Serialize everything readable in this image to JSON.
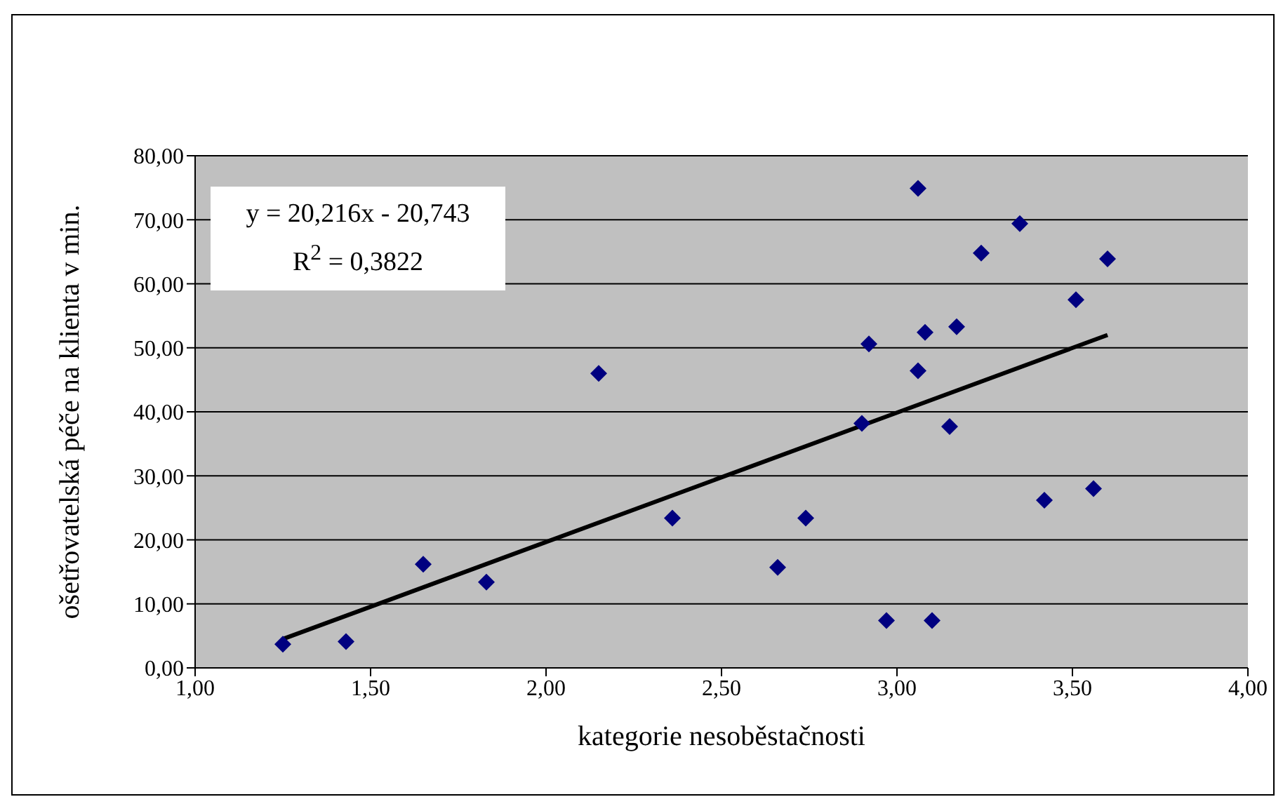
{
  "chart_data": {
    "type": "scatter",
    "xlabel": "kategorie nesoběstačnosti",
    "ylabel": "ošetřovatelská péče na klienta v min.",
    "annotations": [
      "y = 20,216x - 20,743",
      "R$^{2}$ = 0,3822"
    ],
    "x": [
      1.25,
      1.43,
      1.65,
      1.83,
      2.15,
      2.36,
      2.66,
      2.74,
      3.06,
      3.35,
      3.24,
      3.6,
      3.51,
      2.92,
      3.08,
      3.17,
      3.06,
      2.9,
      3.15,
      3.42,
      3.56,
      2.97,
      3.1
    ],
    "series": [
      {
        "color": "#000080",
        "marker": "diamond",
        "values": [
          3.7,
          4.1,
          16.2,
          13.4,
          46.0,
          23.4,
          15.7,
          23.4,
          74.9,
          69.4,
          64.8,
          63.9,
          57.5,
          50.6,
          52.4,
          53.3,
          46.4,
          38.2,
          37.7,
          26.2,
          28.0,
          7.4,
          7.4
        ]
      },
      {
        "type": "line",
        "color": "#000000",
        "marker": "none",
        "line_style": "solid",
        "x": [
          1.25,
          3.6
        ],
        "values": [
          4.5,
          52.0
        ]
      }
    ],
    "xlim": [
      1,
      4
    ],
    "xticks": [
      {
        "value": 1,
        "label": "1,00"
      },
      {
        "value": 1.5,
        "label": "1,50"
      },
      {
        "value": 2,
        "label": "2,00"
      },
      {
        "value": 2.5,
        "label": "2,50"
      },
      {
        "value": 3,
        "label": "3,00"
      },
      {
        "value": 3.5,
        "label": "3,50"
      },
      {
        "value": 4,
        "label": "4,00"
      }
    ],
    "ylim": [
      0,
      80
    ],
    "yticks": [
      {
        "value": 0,
        "label": "0,00"
      },
      {
        "value": 10,
        "label": "10,00"
      },
      {
        "value": 20,
        "label": "20,00"
      },
      {
        "value": 30,
        "label": "30,00"
      },
      {
        "value": 40,
        "label": "40,00"
      },
      {
        "value": 50,
        "label": "50,00"
      },
      {
        "value": 60,
        "label": "60,00"
      },
      {
        "value": 70,
        "label": "70,00"
      },
      {
        "value": 80,
        "label": "80,00"
      }
    ],
    "grid": "y",
    "legend": false
  }
}
